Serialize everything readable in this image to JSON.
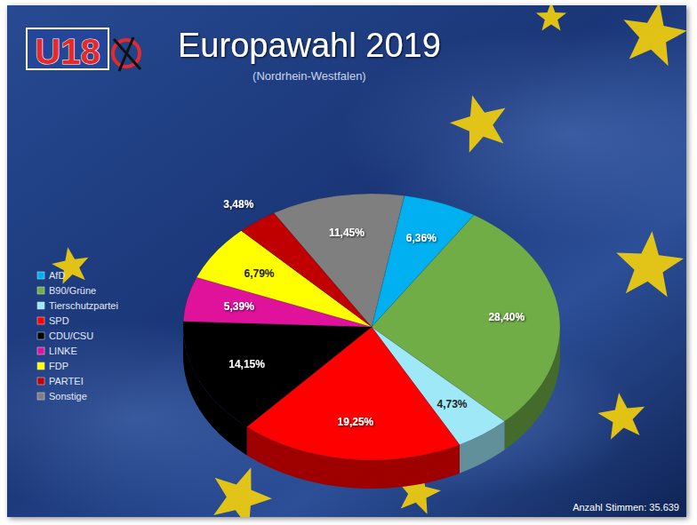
{
  "chart_data": {
    "type": "pie",
    "title": "Europawahl 2019",
    "subtitle": "(Nordrhein-Westfalen)",
    "categories": [
      "AfD",
      "B90/Grüne",
      "Tierschutzpartei",
      "SPD",
      "CDU/CSU",
      "LINKE",
      "FDP",
      "PARTEI",
      "Sonstige"
    ],
    "values": [
      6.36,
      28.4,
      4.73,
      19.25,
      14.15,
      5.39,
      6.79,
      3.48,
      11.45
    ],
    "value_labels": [
      "6,36%",
      "28,40%",
      "4,73%",
      "19,25%",
      "14,15%",
      "5,39%",
      "6,79%",
      "3,48%",
      "11,45%"
    ],
    "colors": [
      "#00b0f0",
      "#70ad47",
      "#9ee8f8",
      "#ff0000",
      "#000000",
      "#e0129c",
      "#ffff00",
      "#c00000",
      "#7f7f7f"
    ],
    "data_labels": true,
    "legend": "left",
    "annotations": [
      "U18",
      "Anzahl Stimmen: 35.639"
    ]
  }
}
